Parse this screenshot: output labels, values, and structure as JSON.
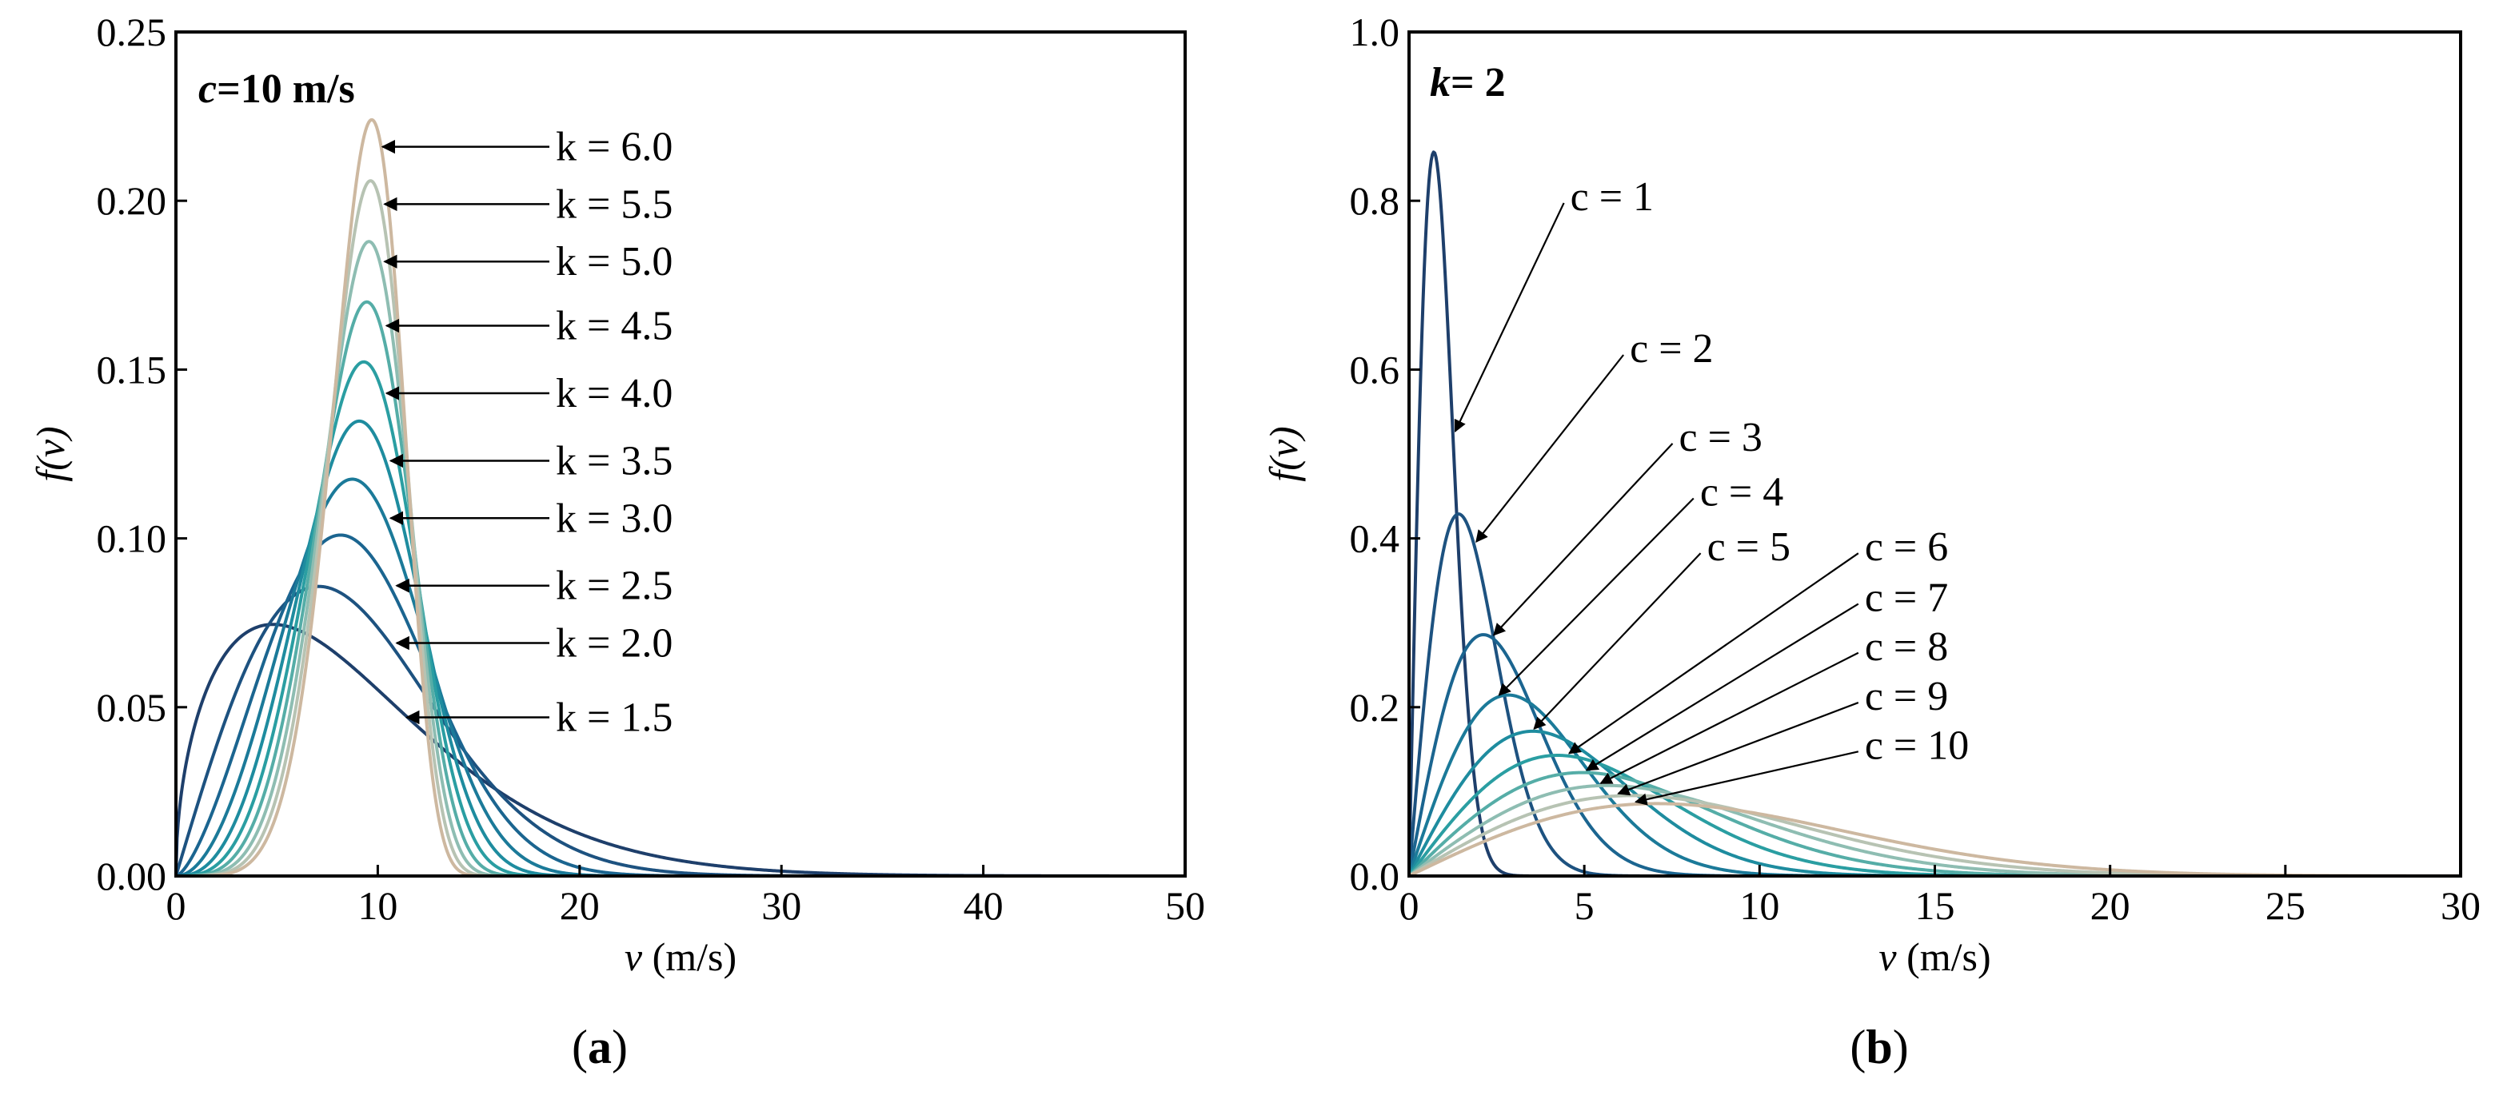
{
  "chart_data": [
    {
      "type": "line",
      "panel_label": "(a)",
      "panel_label_parts": [
        "(",
        "a",
        ")"
      ],
      "parameter_label": "c=10 m/s",
      "parameter_label_parts": [
        "c",
        "=10 m/s"
      ],
      "xlabel": "v (m/s)",
      "xlabel_parts": [
        "v",
        " (m/s)"
      ],
      "ylabel": "f(v)",
      "xlim": [
        0,
        50
      ],
      "ylim": [
        0,
        0.25
      ],
      "xticks": [
        "0",
        "10",
        "20",
        "30",
        "40",
        "50"
      ],
      "yticks": [
        "0.00",
        "0.05",
        "0.10",
        "0.15",
        "0.20",
        "0.25"
      ],
      "grid": false,
      "x_samples": "0 to 50",
      "c": 10,
      "series": [
        {
          "name": "k = 1.5",
          "k": 1.5,
          "color": "#1e3f6b",
          "label_y": 0.047,
          "arrow_x": 11.2,
          "peak": {
            "x": 4.8,
            "y": 0.075
          }
        },
        {
          "name": "k = 2.0",
          "k": 2.0,
          "color": "#1d5280",
          "label_y": 0.069,
          "arrow_x": 10.7,
          "peak": {
            "x": 7.1,
            "y": 0.086
          }
        },
        {
          "name": "k = 2.5",
          "k": 2.5,
          "color": "#1b6590",
          "label_y": 0.086,
          "arrow_x": 10.7,
          "peak": {
            "x": 8.1,
            "y": 0.101
          }
        },
        {
          "name": "k = 3.0",
          "k": 3.0,
          "color": "#1b7a99",
          "label_y": 0.106,
          "arrow_x": 10.4,
          "peak": {
            "x": 8.7,
            "y": 0.117
          }
        },
        {
          "name": "k = 3.5",
          "k": 3.5,
          "color": "#1e8c9f",
          "label_y": 0.123,
          "arrow_x": 10.4,
          "peak": {
            "x": 9.0,
            "y": 0.135
          }
        },
        {
          "name": "k = 4.0",
          "k": 4.0,
          "color": "#2a9ea2",
          "label_y": 0.143,
          "arrow_x": 10.2,
          "peak": {
            "x": 9.2,
            "y": 0.152
          }
        },
        {
          "name": "k = 4.5",
          "k": 4.5,
          "color": "#55ada7",
          "label_y": 0.163,
          "arrow_x": 10.2,
          "peak": {
            "x": 9.4,
            "y": 0.17
          }
        },
        {
          "name": "k = 5.0",
          "k": 5.0,
          "color": "#8ebdb2",
          "label_y": 0.182,
          "arrow_x": 10.1,
          "peak": {
            "x": 9.5,
            "y": 0.188
          }
        },
        {
          "name": "k = 5.5",
          "k": 5.5,
          "color": "#b7c3b3",
          "label_y": 0.199,
          "arrow_x": 10.1,
          "peak": {
            "x": 9.6,
            "y": 0.206
          }
        },
        {
          "name": "k = 6.0",
          "k": 6.0,
          "color": "#cdb8a0",
          "label_y": 0.216,
          "arrow_x": 10.0,
          "peak": {
            "x": 9.7,
            "y": 0.224
          }
        }
      ]
    },
    {
      "type": "line",
      "panel_label": "(b)",
      "panel_label_parts": [
        "(",
        "b",
        ")"
      ],
      "parameter_label": "k= 2",
      "parameter_label_parts": [
        "k",
        "= 2"
      ],
      "xlabel": "v (m/s)",
      "xlabel_parts": [
        "v",
        " (m/s)"
      ],
      "ylabel": "f(v)",
      "xlim": [
        0,
        30
      ],
      "ylim": [
        0,
        1.0
      ],
      "xticks": [
        "0",
        "5",
        "10",
        "15",
        "20",
        "25",
        "30"
      ],
      "yticks": [
        "0.0",
        "0.2",
        "0.4",
        "0.6",
        "0.8",
        "1.0"
      ],
      "grid": false,
      "x_samples": "0 to 30",
      "k": 2,
      "series": [
        {
          "name": "c = 1",
          "c": 1,
          "color": "#1e3f6b",
          "arrow_x": 1.25,
          "label_x": 4.6,
          "label_y": 0.805,
          "peak": {
            "x": 0.71,
            "y": 0.858
          }
        },
        {
          "name": "c = 2",
          "c": 2,
          "color": "#1d5280",
          "arrow_x": 1.85,
          "label_x": 6.3,
          "label_y": 0.625,
          "peak": {
            "x": 1.41,
            "y": 0.429
          }
        },
        {
          "name": "c = 3",
          "c": 3,
          "color": "#1b6590",
          "arrow_x": 2.35,
          "label_x": 7.7,
          "label_y": 0.52,
          "peak": {
            "x": 2.12,
            "y": 0.286
          }
        },
        {
          "name": "c = 4",
          "c": 4,
          "color": "#1b7a99",
          "arrow_x": 2.5,
          "label_x": 8.3,
          "label_y": 0.455,
          "peak": {
            "x": 2.83,
            "y": 0.214
          }
        },
        {
          "name": "c = 5",
          "c": 5,
          "color": "#1e8c9f",
          "arrow_x": 3.5,
          "label_x": 8.5,
          "label_y": 0.39,
          "peak": {
            "x": 3.54,
            "y": 0.172
          }
        },
        {
          "name": "c = 6",
          "c": 6,
          "color": "#2a9ea2",
          "arrow_x": 4.5,
          "label_x": 13.0,
          "label_y": 0.39,
          "peak": {
            "x": 4.24,
            "y": 0.143
          }
        },
        {
          "name": "c = 7",
          "c": 7,
          "color": "#55ada7",
          "arrow_x": 5.0,
          "label_x": 13.0,
          "label_y": 0.33,
          "peak": {
            "x": 4.95,
            "y": 0.123
          }
        },
        {
          "name": "c = 8",
          "c": 8,
          "color": "#8ebdb2",
          "arrow_x": 5.4,
          "label_x": 13.0,
          "label_y": 0.272,
          "peak": {
            "x": 5.66,
            "y": 0.107
          }
        },
        {
          "name": "c = 9",
          "c": 9,
          "color": "#b7c3b3",
          "arrow_x": 5.9,
          "label_x": 13.0,
          "label_y": 0.213,
          "peak": {
            "x": 6.36,
            "y": 0.095
          }
        },
        {
          "name": "c = 10",
          "c": 10,
          "color": "#cdb8a0",
          "arrow_x": 6.4,
          "label_x": 13.0,
          "label_y": 0.155,
          "peak": {
            "x": 7.07,
            "y": 0.086
          }
        }
      ]
    }
  ]
}
